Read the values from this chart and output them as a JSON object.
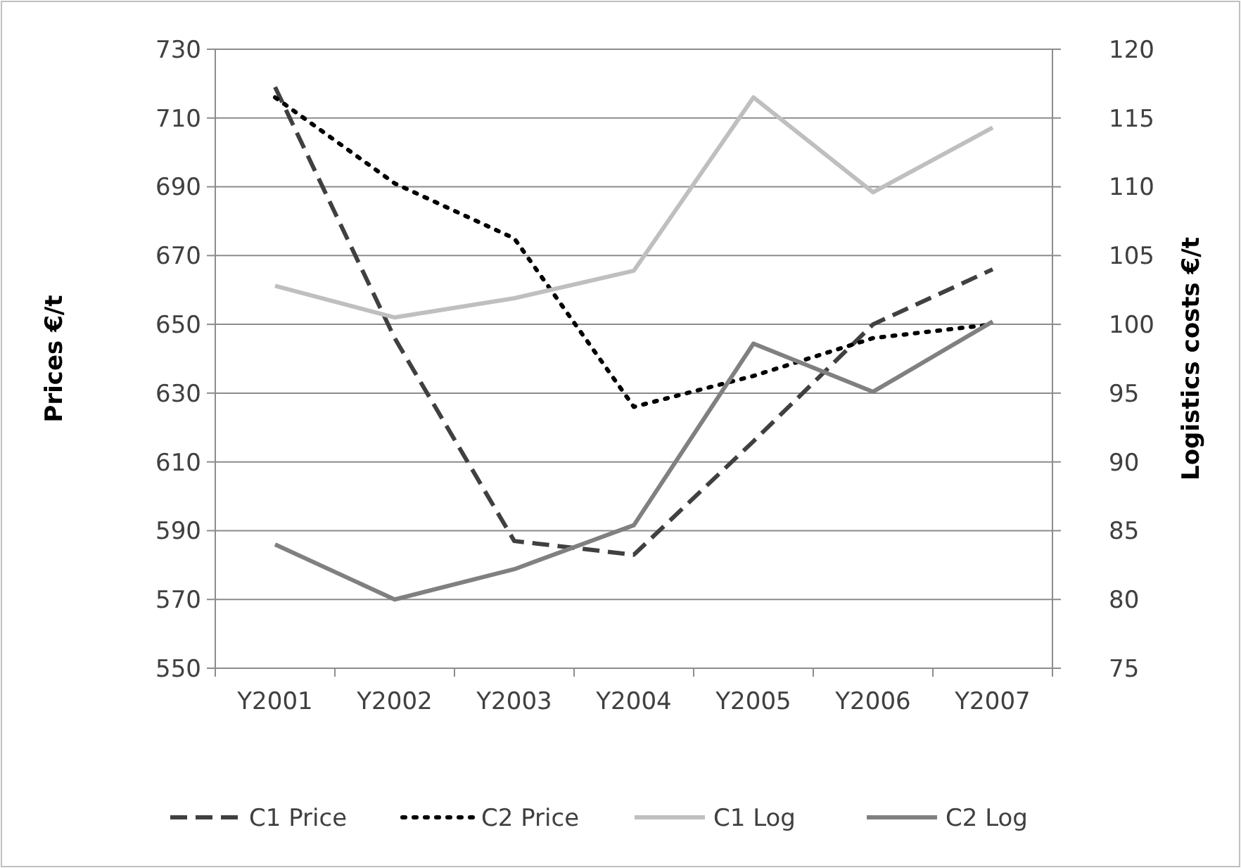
{
  "chart_data": {
    "type": "line",
    "ylabel": "Prices €/t",
    "y2label": "Logistics costs €/t",
    "categories": [
      "Y2001",
      "Y2002",
      "Y2003",
      "Y2004",
      "Y2005",
      "Y2006",
      "Y2007"
    ],
    "series": [
      {
        "name": "C1 Price",
        "color": "#404040",
        "line_style": "dashed",
        "values": [
          719,
          646,
          587,
          583,
          616,
          650,
          666
        ]
      },
      {
        "name": "C2 Price",
        "color": "#000000",
        "line_style": "dotted",
        "values": [
          716,
          691,
          675,
          626,
          635,
          646,
          650
        ]
      },
      {
        "name": "C1 Log",
        "color": "#bfbfbf",
        "line_style": "solid",
        "axis": "y2",
        "values": [
          102.8,
          100.5,
          101.9,
          103.9,
          116.5,
          109.6,
          114.3
        ]
      },
      {
        "name": "C2 Log",
        "color": "#808080",
        "line_style": "solid",
        "axis": "y2",
        "values": [
          84,
          80,
          82.2,
          85.4,
          98.6,
          95.1,
          100.2
        ]
      }
    ],
    "ylim": [
      550,
      730
    ],
    "yticks": [
      550,
      570,
      590,
      610,
      630,
      650,
      670,
      690,
      710,
      730
    ],
    "y2lim": [
      75,
      120
    ],
    "y2ticks": [
      75,
      80,
      85,
      90,
      95,
      100,
      105,
      110,
      115,
      120
    ],
    "grid": "y",
    "legend": "bottom",
    "marker": "none"
  }
}
